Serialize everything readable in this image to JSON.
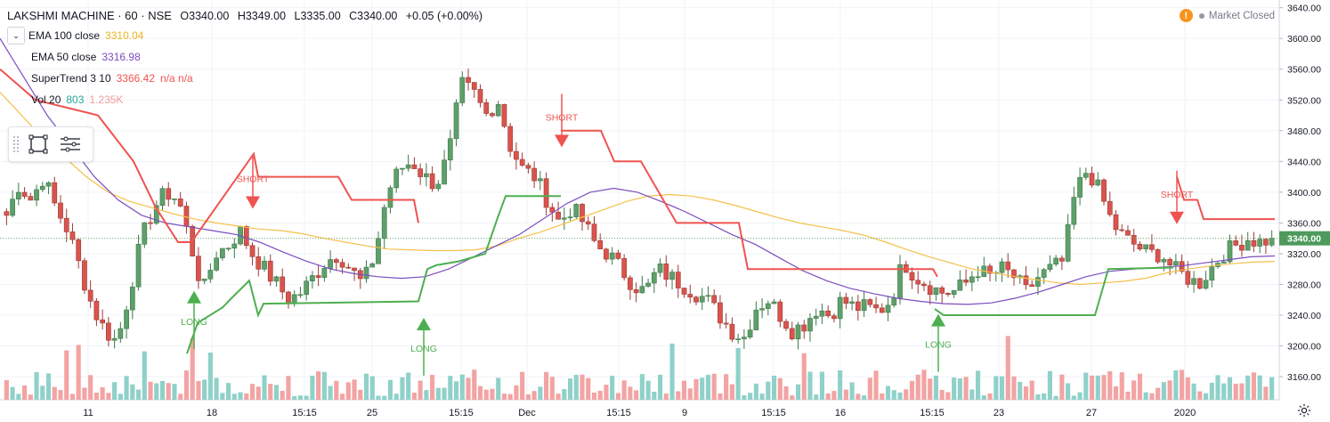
{
  "header": {
    "symbol_line": "LAKSHMI MACHINE · 60 · NSE",
    "open": "O3340.00",
    "high": "H3349.00",
    "low": "L3335.00",
    "close": "C3340.00",
    "change": "+0.05 (+0.00%)"
  },
  "indicators": [
    {
      "name": "EMA 100 close",
      "value": "3310.04",
      "color": "#f0b323"
    },
    {
      "name": "EMA 50 close",
      "value": "3316.98",
      "color": "#7c4dbe"
    },
    {
      "name": "SuperTrend 3 10",
      "value": "3366.42",
      "extra": "n/a n/a",
      "color": "#ef5350"
    },
    {
      "name": "Vol 20",
      "value": "803",
      "extra": "1.235K",
      "color": "#26a69a",
      "extra_color": "#ef9a9a"
    }
  ],
  "status": {
    "market": "Market Closed"
  },
  "chart_data": {
    "type": "candlestick",
    "title": "LAKSHMI MACHINE · 60 · NSE",
    "y_ticks": [
      3160,
      3200,
      3240,
      3280,
      3320,
      3360,
      3400,
      3440,
      3480,
      3520,
      3560,
      3600,
      3640
    ],
    "ylim": [
      3130,
      3650
    ],
    "x_ticks": [
      "11",
      "18",
      "15:15",
      "25",
      "15:15",
      "Dec",
      "15:15",
      "9",
      "15:15",
      "16",
      "15:15",
      "23",
      "27",
      "2020"
    ],
    "last_price": "3340.00",
    "close_path": [
      3370,
      3410,
      3390,
      3420,
      3380,
      3350,
      3300,
      3250,
      3220,
      3205,
      3270,
      3340,
      3380,
      3400,
      3390,
      3330,
      3270,
      3320,
      3330,
      3350,
      3320,
      3300,
      3280,
      3260,
      3270,
      3290,
      3310,
      3320,
      3300,
      3280,
      3320,
      3400,
      3430,
      3440,
      3420,
      3410,
      3450,
      3540,
      3530,
      3500,
      3520,
      3460,
      3430,
      3420,
      3390,
      3360,
      3380,
      3360,
      3330,
      3320,
      3300,
      3280,
      3270,
      3300,
      3290,
      3280,
      3270,
      3260,
      3240,
      3220,
      3210,
      3250,
      3260,
      3240,
      3220,
      3230,
      3250,
      3240,
      3260,
      3250,
      3250,
      3245,
      3260,
      3310,
      3290,
      3280,
      3270,
      3270,
      3280,
      3300,
      3290,
      3300,
      3290,
      3270,
      3290,
      3300,
      3310,
      3400,
      3430,
      3400,
      3360,
      3340,
      3330,
      3320,
      3320,
      3300,
      3290,
      3280,
      3300,
      3320,
      3330,
      3340,
      3335,
      3340
    ],
    "ema100": [
      3530,
      3500,
      3470,
      3445,
      3420,
      3400,
      3388,
      3380,
      3372,
      3365,
      3360,
      3356,
      3352,
      3350,
      3346,
      3340,
      3335,
      3330,
      3326,
      3325,
      3324,
      3324,
      3325,
      3330,
      3340,
      3348,
      3358,
      3368,
      3378,
      3388,
      3395,
      3397,
      3395,
      3390,
      3383,
      3375,
      3367,
      3360,
      3355,
      3350,
      3344,
      3335,
      3325,
      3316,
      3308,
      3300,
      3295,
      3290,
      3286,
      3282,
      3280,
      3282,
      3284,
      3288,
      3295,
      3300,
      3304,
      3307,
      3309,
      3310
    ],
    "ema50": [
      3600,
      3550,
      3500,
      3460,
      3420,
      3390,
      3370,
      3360,
      3355,
      3350,
      3345,
      3335,
      3322,
      3310,
      3300,
      3294,
      3290,
      3288,
      3290,
      3300,
      3315,
      3330,
      3345,
      3365,
      3385,
      3400,
      3405,
      3400,
      3388,
      3375,
      3360,
      3345,
      3332,
      3315,
      3298,
      3285,
      3275,
      3268,
      3262,
      3258,
      3255,
      3254,
      3256,
      3262,
      3270,
      3280,
      3290,
      3297,
      3300,
      3302,
      3304,
      3308,
      3312,
      3316,
      3317
    ],
    "supertrend_up": [
      [
        210,
        3188
      ],
      [
        225,
        3230
      ],
      [
        250,
        3245
      ],
      [
        260,
        3255
      ],
      [
        280,
        3275
      ],
      [
        290,
        3240
      ],
      [
        295,
        3255
      ]
    ],
    "signals": [
      {
        "label": "LONG",
        "kind": "long"
      },
      {
        "label": "SHORT",
        "kind": "short"
      },
      {
        "label": "LONG",
        "kind": "long"
      },
      {
        "label": "SHORT",
        "kind": "short"
      },
      {
        "label": "LONG",
        "kind": "long"
      },
      {
        "label": "SHORT",
        "kind": "short"
      }
    ]
  },
  "colors": {
    "up": "#5f9f6a",
    "down": "#d9544d",
    "vol_up": "#8fd1c9",
    "vol_down": "#f3a3a3",
    "grid": "#f0f3fa",
    "axis_text": "#131722",
    "supertrend_up": "#4caf50",
    "supertrend_down": "#ef5350"
  }
}
